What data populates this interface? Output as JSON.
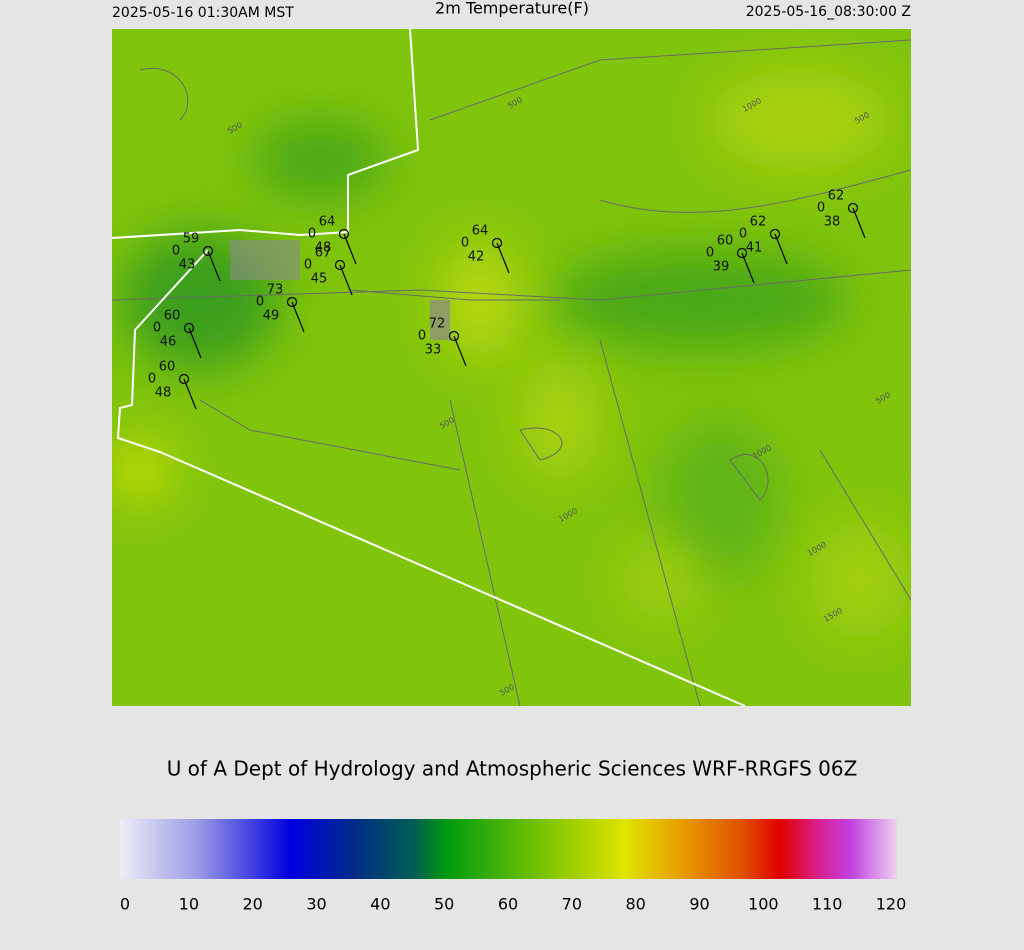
{
  "header": {
    "local_time": "2025-05-16 01:30AM MST",
    "title": "2m Temperature(F)",
    "utc_time": "2025-05-16_08:30:00 Z"
  },
  "stations": [
    {
      "temp": "59",
      "wind": "0",
      "dew": "43"
    },
    {
      "temp": "64",
      "wind": "0",
      "dew": "48"
    },
    {
      "temp": "67",
      "wind": "0",
      "dew": "45"
    },
    {
      "temp": "73",
      "wind": "0",
      "dew": "49"
    },
    {
      "temp": "60",
      "wind": "0",
      "dew": "46"
    },
    {
      "temp": "60",
      "wind": "0",
      "dew": "48"
    },
    {
      "temp": "64",
      "wind": "0",
      "dew": "42"
    },
    {
      "temp": "72",
      "wind": "0",
      "dew": "33"
    },
    {
      "temp": "60",
      "wind": "0",
      "dew": "39"
    },
    {
      "temp": "62",
      "wind": "0",
      "dew": "41"
    },
    {
      "temp": "62",
      "wind": "0",
      "dew": "38"
    }
  ],
  "contour_labels": [
    "500",
    "500",
    "1000",
    "500",
    "500",
    "1000",
    "1000",
    "500",
    "1000",
    "1500",
    "500"
  ],
  "footer": "U of A Dept of Hydrology and Atmospheric Sciences WRF-RRGFS 06Z",
  "colorbar": {
    "ticks": [
      0,
      10,
      20,
      30,
      40,
      50,
      60,
      70,
      80,
      90,
      100,
      110,
      120
    ]
  }
}
